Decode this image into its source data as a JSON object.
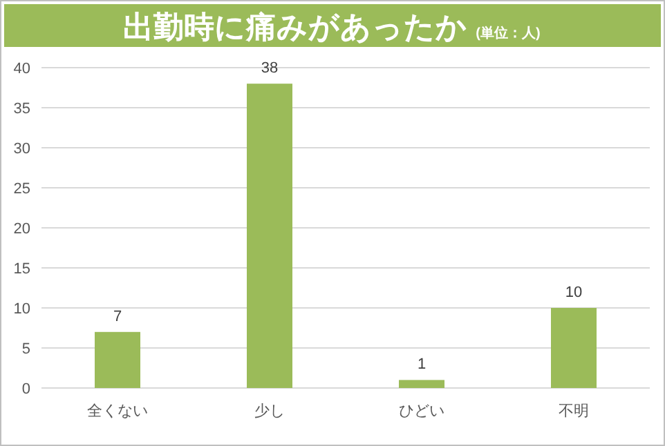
{
  "chart_data": {
    "type": "bar",
    "title": "出勤時に痛みがあったか",
    "subtitle": "(単位：人)",
    "categories": [
      "全くない",
      "少し",
      "ひどい",
      "不明"
    ],
    "values": [
      7,
      38,
      1,
      10
    ],
    "color": "#9bbb59",
    "ylim": [
      0,
      40
    ],
    "yticks": [
      0,
      5,
      10,
      15,
      20,
      25,
      30,
      35,
      40
    ],
    "grid": "y",
    "data_labels": true
  }
}
